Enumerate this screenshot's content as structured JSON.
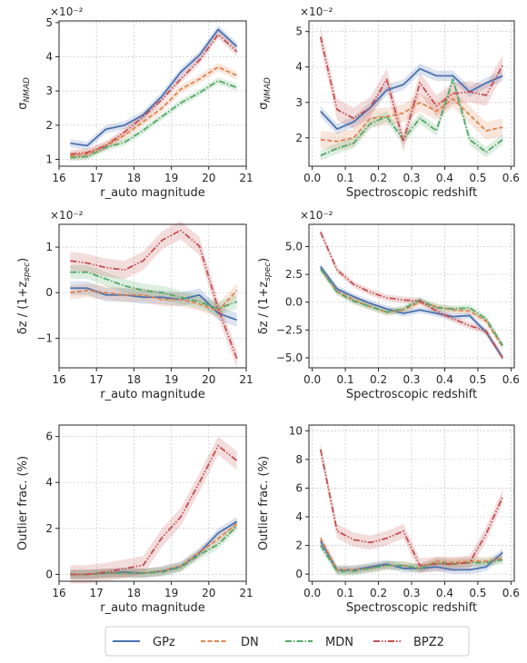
{
  "colors": {
    "GPz": "#4c72b0",
    "DN": "#dd8452",
    "MDN": "#55a868",
    "BPZ2": "#c44e52"
  },
  "legend": [
    "GPz",
    "DN",
    "MDN",
    "BPZ2"
  ],
  "chart_data": [
    {
      "type": "line",
      "id": "sigma-mag",
      "xlabel": "r_auto magnitude",
      "ylabel": "σ_NMAD",
      "multiplier": "×10⁻²",
      "xlim": [
        16,
        21
      ],
      "ylim": [
        0.8,
        5.05
      ],
      "xticks": [
        16,
        17,
        18,
        19,
        20,
        21
      ],
      "yticks": [
        1,
        2,
        3,
        4,
        5
      ],
      "ytick_labels": [
        "1",
        "2",
        "3",
        "4",
        "5"
      ],
      "x": [
        16.3,
        16.75,
        17.25,
        17.75,
        18.25,
        18.75,
        19.25,
        19.75,
        20.25,
        20.75
      ],
      "series": [
        {
          "name": "GPz",
          "values": [
            1.47,
            1.4,
            1.88,
            2.0,
            2.3,
            2.85,
            3.55,
            4.05,
            4.8,
            4.3
          ],
          "band": 0.12
        },
        {
          "name": "DN",
          "values": [
            1.1,
            1.15,
            1.4,
            1.7,
            2.1,
            2.5,
            3.05,
            3.35,
            3.7,
            3.45
          ],
          "band": 0.12
        },
        {
          "name": "MDN",
          "values": [
            1.05,
            1.08,
            1.35,
            1.5,
            1.85,
            2.25,
            2.65,
            2.95,
            3.3,
            3.1
          ],
          "band": 0.1
        },
        {
          "name": "BPZ2",
          "values": [
            1.15,
            1.2,
            1.4,
            1.8,
            2.25,
            2.75,
            3.35,
            3.9,
            4.65,
            4.15
          ],
          "band": 0.12
        }
      ]
    },
    {
      "type": "line",
      "id": "sigma-z",
      "xlabel": "Spectroscopic redshift",
      "ylabel": "σ_NMAD",
      "multiplier": "×10⁻²",
      "xlim": [
        -0.01,
        0.61
      ],
      "ylim": [
        1.2,
        5.3
      ],
      "xticks": [
        0.0,
        0.1,
        0.2,
        0.3,
        0.4,
        0.5,
        0.6
      ],
      "yticks": [
        2,
        3,
        4,
        5
      ],
      "ytick_labels": [
        "2",
        "3",
        "4",
        "5"
      ],
      "x": [
        0.025,
        0.075,
        0.125,
        0.175,
        0.225,
        0.275,
        0.325,
        0.375,
        0.425,
        0.475,
        0.525,
        0.575
      ],
      "series": [
        {
          "name": "GPz",
          "values": [
            2.75,
            2.25,
            2.45,
            2.85,
            3.35,
            3.5,
            3.95,
            3.75,
            3.75,
            3.3,
            3.55,
            3.75
          ],
          "band": 0.15
        },
        {
          "name": "DN",
          "values": [
            1.95,
            1.9,
            2.0,
            2.55,
            2.6,
            2.7,
            3.0,
            2.75,
            3.1,
            2.65,
            2.2,
            2.3
          ],
          "band": 0.25
        },
        {
          "name": "MDN",
          "values": [
            1.5,
            1.7,
            1.85,
            2.4,
            2.6,
            1.95,
            2.55,
            2.2,
            3.65,
            1.95,
            1.6,
            1.95
          ],
          "band": 0.15
        },
        {
          "name": "BPZ2",
          "values": [
            4.85,
            2.8,
            2.55,
            2.85,
            3.65,
            1.9,
            3.55,
            2.9,
            3.25,
            3.3,
            3.2,
            4.05
          ],
          "band": 0.3
        }
      ]
    },
    {
      "type": "line",
      "id": "bias-mag",
      "xlabel": "r_auto magnitude",
      "ylabel": "δz / (1+z_spec)",
      "multiplier": "×10⁻²",
      "xlim": [
        16,
        21
      ],
      "ylim": [
        -1.65,
        1.5
      ],
      "xticks": [
        16,
        17,
        18,
        19,
        20,
        21
      ],
      "yticks": [
        -1,
        0,
        1
      ],
      "ytick_labels": [
        "−1",
        "0",
        "1"
      ],
      "x": [
        16.3,
        16.75,
        17.25,
        17.75,
        18.25,
        18.75,
        19.25,
        19.75,
        20.25,
        20.75
      ],
      "series": [
        {
          "name": "GPz",
          "values": [
            0.1,
            0.1,
            -0.05,
            -0.05,
            -0.1,
            -0.1,
            -0.15,
            -0.05,
            -0.45,
            -0.6
          ],
          "band": 0.15
        },
        {
          "name": "DN",
          "values": [
            0.0,
            0.05,
            0.0,
            -0.05,
            -0.05,
            -0.15,
            -0.15,
            -0.25,
            -0.4,
            0.05
          ],
          "band": 0.15
        },
        {
          "name": "MDN",
          "values": [
            0.45,
            0.45,
            0.3,
            0.15,
            0.05,
            0.0,
            -0.1,
            -0.2,
            -0.35,
            -0.2
          ],
          "band": 0.15
        },
        {
          "name": "BPZ2",
          "values": [
            0.7,
            0.65,
            0.55,
            0.5,
            0.7,
            1.15,
            1.37,
            1.02,
            -0.35,
            -1.45
          ],
          "band": 0.2
        }
      ]
    },
    {
      "type": "line",
      "id": "bias-z",
      "xlabel": "Spectroscopic redshift",
      "ylabel": "δz / (1+z_spec)",
      "multiplier": "×10⁻²",
      "xlim": [
        -0.01,
        0.61
      ],
      "ylim": [
        -5.9,
        7.0
      ],
      "xticks": [
        0.0,
        0.1,
        0.2,
        0.3,
        0.4,
        0.5,
        0.6
      ],
      "yticks": [
        -5.0,
        -2.5,
        0.0,
        2.5,
        5.0
      ],
      "ytick_labels": [
        "−5.0",
        "−2.5",
        "0.0",
        "2.5",
        "5.0"
      ],
      "x": [
        0.025,
        0.075,
        0.125,
        0.175,
        0.225,
        0.275,
        0.325,
        0.375,
        0.425,
        0.475,
        0.525,
        0.575
      ],
      "series": [
        {
          "name": "GPz",
          "values": [
            3.2,
            1.2,
            0.5,
            -0.1,
            -0.6,
            -1.0,
            -0.7,
            -1.0,
            -1.3,
            -1.2,
            -2.7,
            -5.0
          ],
          "band": 0.3
        },
        {
          "name": "DN",
          "values": [
            3.0,
            1.0,
            0.2,
            -0.4,
            -0.9,
            -0.7,
            0.0,
            -0.4,
            -0.7,
            -0.8,
            -1.7,
            -4.0
          ],
          "band": 0.3
        },
        {
          "name": "MDN",
          "values": [
            3.0,
            0.9,
            0.1,
            -0.4,
            -0.9,
            -0.6,
            0.2,
            -0.5,
            -0.6,
            -0.5,
            -1.5,
            -3.9
          ],
          "band": 0.3
        },
        {
          "name": "BPZ2",
          "values": [
            6.3,
            2.9,
            1.6,
            0.9,
            0.4,
            0.2,
            0.1,
            -0.8,
            -1.5,
            -2.1,
            -2.6,
            -5.0
          ],
          "band": 0.3
        }
      ]
    },
    {
      "type": "line",
      "id": "outlier-mag",
      "xlabel": "r_auto magnitude",
      "ylabel": "Outlier frac. (%)",
      "xlim": [
        16,
        21
      ],
      "ylim": [
        -0.3,
        6.5
      ],
      "xticks": [
        16,
        17,
        18,
        19,
        20,
        21
      ],
      "yticks": [
        0,
        2,
        4,
        6
      ],
      "ytick_labels": [
        "0",
        "2",
        "4",
        "6"
      ],
      "x": [
        16.3,
        16.75,
        17.25,
        17.75,
        18.25,
        18.75,
        19.25,
        19.75,
        20.25,
        20.75
      ],
      "series": [
        {
          "name": "GPz",
          "values": [
            0.0,
            0.0,
            0.05,
            0.1,
            0.05,
            0.15,
            0.35,
            0.95,
            1.8,
            2.3
          ],
          "band": 0.2
        },
        {
          "name": "DN",
          "values": [
            0.0,
            0.0,
            0.05,
            0.05,
            0.05,
            0.15,
            0.35,
            0.95,
            1.55,
            2.2
          ],
          "band": 0.2
        },
        {
          "name": "MDN",
          "values": [
            0.0,
            0.0,
            0.05,
            0.05,
            0.05,
            0.1,
            0.3,
            0.85,
            1.3,
            2.1
          ],
          "band": 0.2
        },
        {
          "name": "BPZ2",
          "values": [
            0.0,
            0.0,
            0.1,
            0.25,
            0.4,
            1.6,
            2.5,
            4.0,
            5.6,
            4.95
          ],
          "band": 0.4
        }
      ]
    },
    {
      "type": "line",
      "id": "outlier-z",
      "xlabel": "Spectroscopic redshift",
      "ylabel": "Outlier frac. (%)",
      "xlim": [
        -0.01,
        0.61
      ],
      "ylim": [
        -0.5,
        10.4
      ],
      "xticks": [
        0.0,
        0.1,
        0.2,
        0.3,
        0.4,
        0.5,
        0.6
      ],
      "yticks": [
        0,
        2,
        4,
        6,
        8,
        10
      ],
      "ytick_labels": [
        "0",
        "2",
        "4",
        "6",
        "8",
        "10"
      ],
      "x": [
        0.025,
        0.075,
        0.125,
        0.175,
        0.225,
        0.275,
        0.325,
        0.375,
        0.425,
        0.475,
        0.525,
        0.575
      ],
      "series": [
        {
          "name": "GPz",
          "values": [
            2.3,
            0.3,
            0.3,
            0.5,
            0.7,
            0.4,
            0.4,
            0.5,
            0.3,
            0.3,
            0.5,
            1.5
          ],
          "band": 0.3
        },
        {
          "name": "DN",
          "values": [
            2.5,
            0.3,
            0.3,
            0.4,
            0.6,
            0.6,
            0.4,
            0.9,
            0.8,
            0.9,
            0.9,
            1.1
          ],
          "band": 0.3
        },
        {
          "name": "MDN",
          "values": [
            2.0,
            0.2,
            0.2,
            0.4,
            0.6,
            0.6,
            0.4,
            0.8,
            0.7,
            0.8,
            0.8,
            1.0
          ],
          "band": 0.3
        },
        {
          "name": "BPZ2",
          "values": [
            8.7,
            3.0,
            2.4,
            2.2,
            2.5,
            3.0,
            0.6,
            0.7,
            0.7,
            0.8,
            2.8,
            5.4
          ],
          "band": 0.5
        }
      ]
    }
  ]
}
